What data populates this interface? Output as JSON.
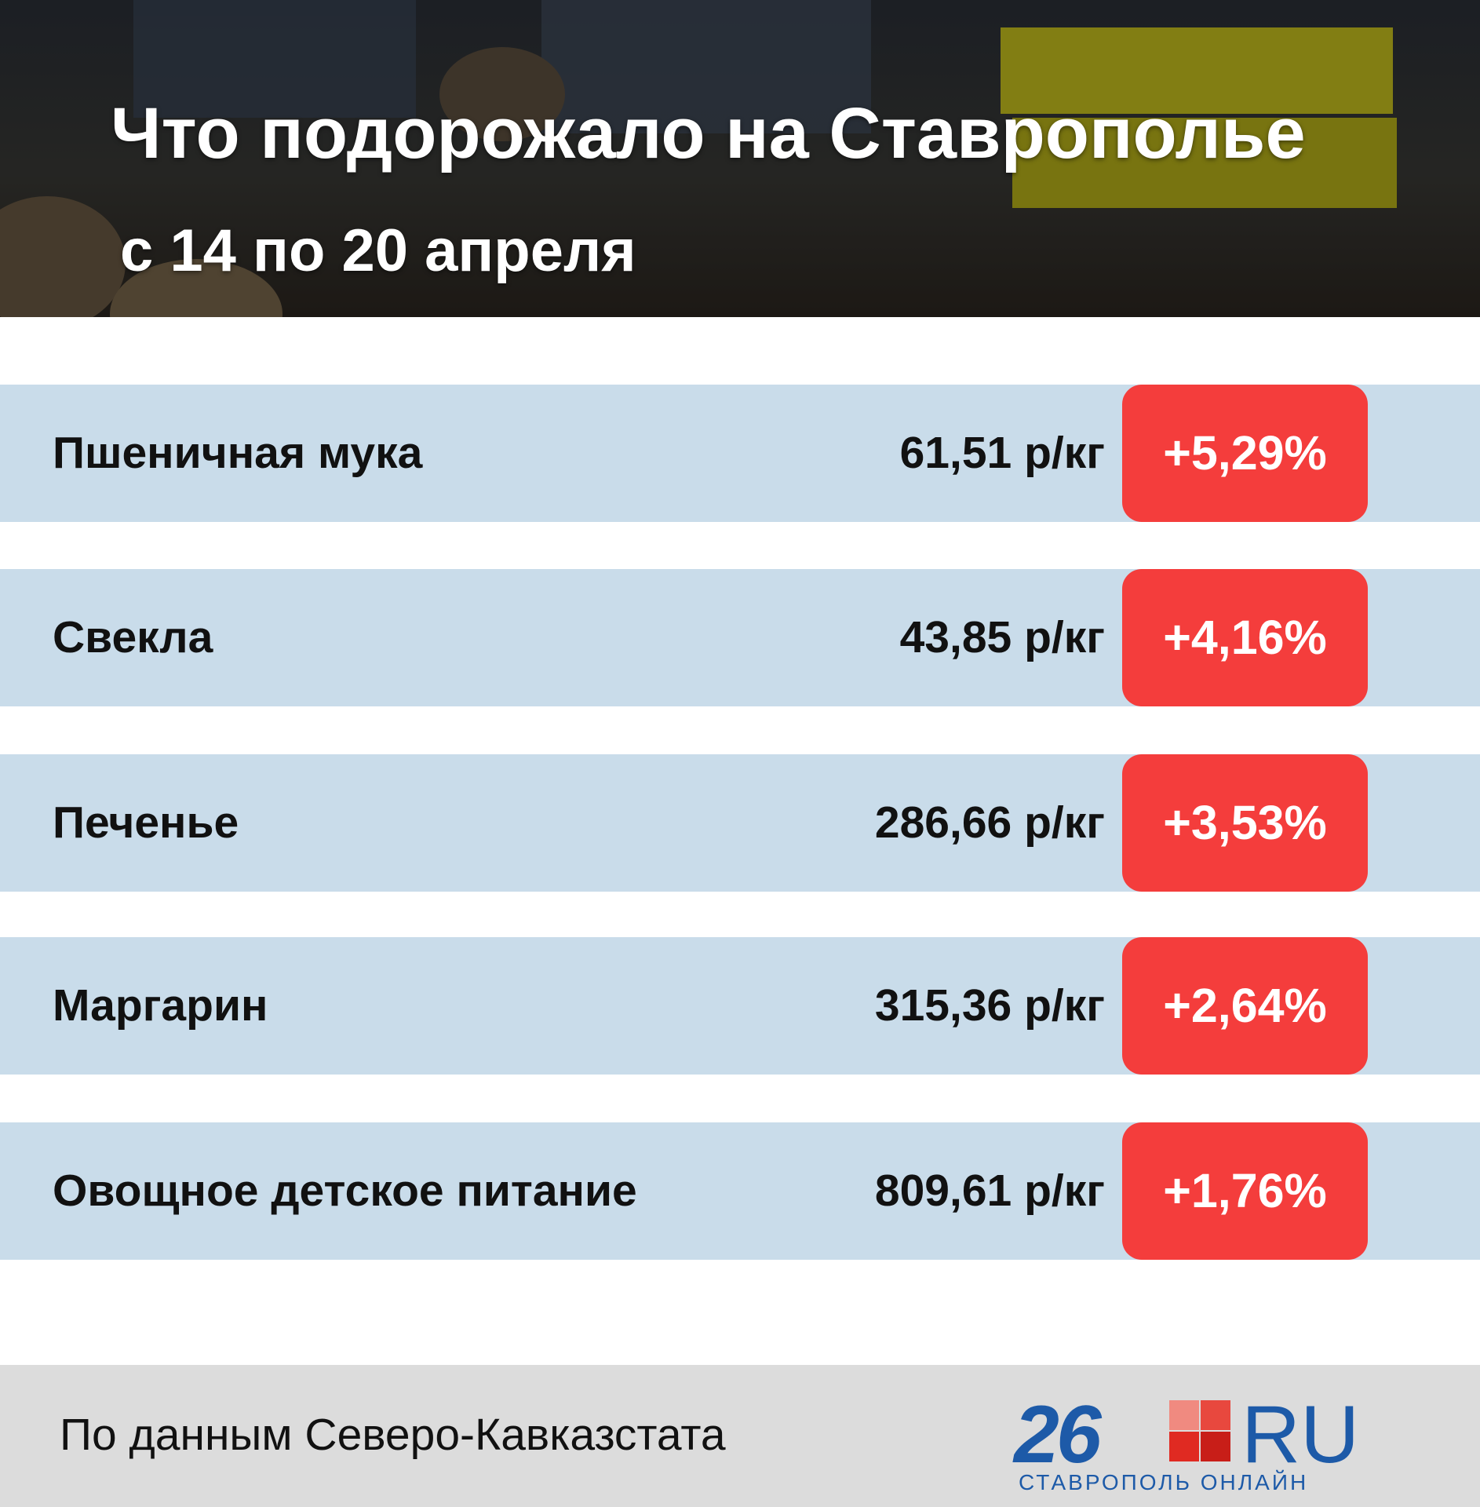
{
  "header": {
    "title": "Что подорожало на Ставрополье",
    "subtitle": "с 14 по 20 апреля"
  },
  "table": {
    "rows": [
      [
        "Пшеничная мука",
        "61,51 р/кг",
        "+5,29%"
      ],
      [
        "Свекла",
        "43,85 р/кг",
        "+4,16%"
      ],
      [
        "Печенье",
        "286,66 р/кг",
        "+3,53%"
      ],
      [
        "Маргарин",
        "315,36 р/кг",
        "+2,64%"
      ],
      [
        "Овощное детское питание",
        "809,61 р/кг",
        "+1,76%"
      ]
    ]
  },
  "footer": {
    "source": "По данным Северо-Кавказстата",
    "logo": {
      "number": "26",
      "suffix": "RU",
      "tagline": "СТАВРОПОЛЬ ОНЛАЙН"
    }
  }
}
